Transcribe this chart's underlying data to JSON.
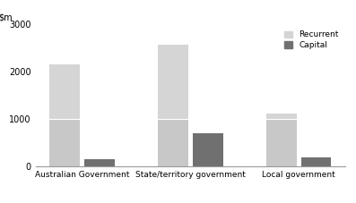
{
  "groups": [
    "Australian Government",
    "State/territory government",
    "Local government"
  ],
  "recurrent_total": [
    2150,
    2570,
    1120
  ],
  "recurrent_lower": [
    1000,
    1000,
    1000
  ],
  "capital": [
    150,
    700,
    200
  ],
  "recurrent_color": "#c8c8c8",
  "recurrent_color_top": "#d5d5d5",
  "capital_color": "#707070",
  "ylim": [
    0,
    3000
  ],
  "yticks": [
    0,
    1000,
    2000,
    3000
  ],
  "legend_recurrent": "Recurrent",
  "legend_capital": "Capital",
  "bar_width": 0.28,
  "background_color": "#ffffff"
}
